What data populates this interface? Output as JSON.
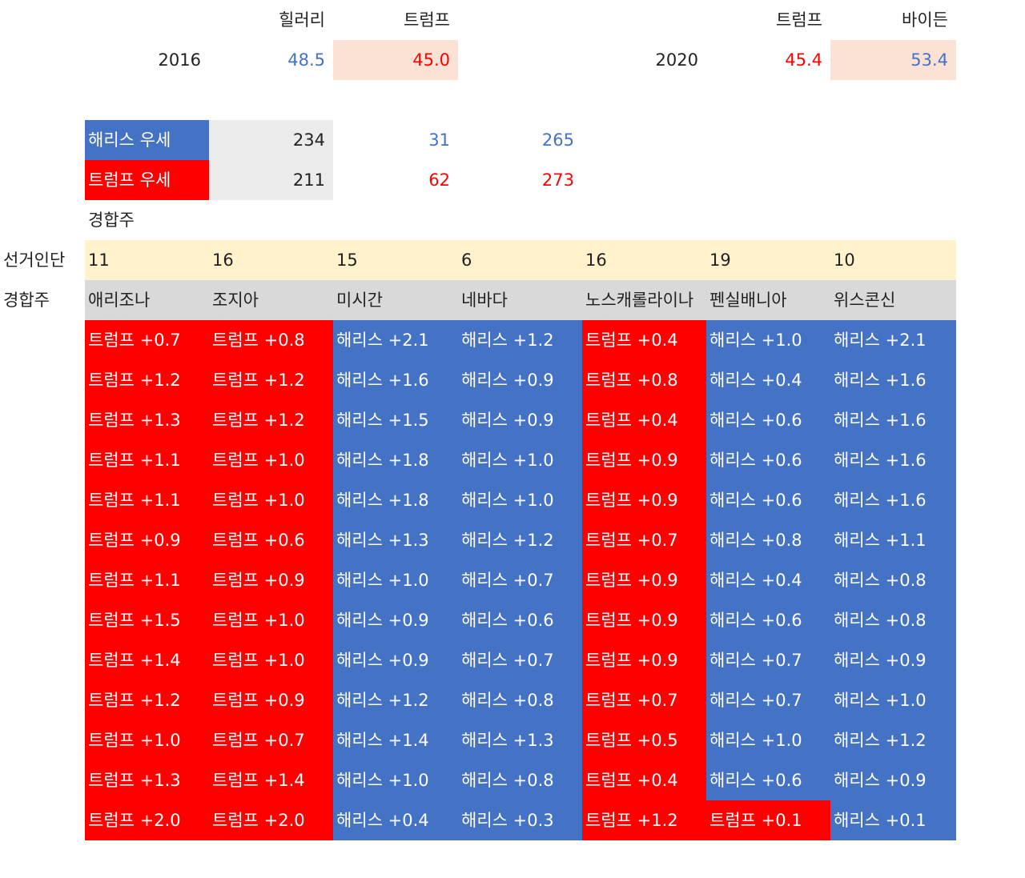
{
  "colors": {
    "harris": "#4472c4",
    "trump": "#ff0000",
    "peach": "#fbe2d5",
    "light_gray": "#ebebeb",
    "yellow": "#fff2cc",
    "gray": "#d9d9d9"
  },
  "y2016": {
    "year": "2016",
    "h1": "힐러리",
    "h2": "트럼프",
    "v1": "48.5",
    "v2": "45.0"
  },
  "y2020": {
    "year": "2020",
    "h1": "트럼프",
    "h2": "바이든",
    "v1": "45.4",
    "v2": "53.4"
  },
  "summary": {
    "harris": {
      "label": "해리스 우세",
      "base": "234",
      "add": "31",
      "total": "265"
    },
    "trump": {
      "label": "트럼프 우세",
      "base": "211",
      "add": "62",
      "total": "273"
    },
    "swing_label": "경합주"
  },
  "table": {
    "electors_label": "선거인단",
    "states_label": "경합주",
    "electors": [
      "11",
      "16",
      "15",
      "6",
      "16",
      "19",
      "10"
    ],
    "states": [
      "애리조나",
      "조지아",
      "미시간",
      "네바다",
      "노스캐롤라이나",
      "펜실배니아",
      "위스콘신"
    ],
    "rows": [
      [
        "트럼프 +0.7",
        "트럼프 +0.8",
        "해리스 +2.1",
        "해리스 +1.2",
        "트럼프 +0.4",
        "해리스 +1.0",
        "해리스 +2.1"
      ],
      [
        "트럼프 +1.2",
        "트럼프 +1.2",
        "해리스 +1.6",
        "해리스 +0.9",
        "트럼프 +0.8",
        "해리스 +0.4",
        "해리스 +1.6"
      ],
      [
        "트럼프 +1.3",
        "트럼프 +1.2",
        "해리스 +1.5",
        "해리스 +0.9",
        "트럼프 +0.4",
        "해리스 +0.6",
        "해리스 +1.6"
      ],
      [
        "트럼프 +1.1",
        "트럼프 +1.0",
        "해리스 +1.8",
        "해리스 +1.0",
        "트럼프 +0.9",
        "해리스 +0.6",
        "해리스 +1.6"
      ],
      [
        "트럼프 +1.1",
        "트럼프 +1.0",
        "해리스 +1.8",
        "해리스 +1.0",
        "트럼프 +0.9",
        "해리스 +0.6",
        "해리스 +1.6"
      ],
      [
        "트럼프 +0.9",
        "트럼프 +0.6",
        "해리스 +1.3",
        "해리스 +1.2",
        "트럼프 +0.7",
        "해리스 +0.8",
        "해리스 +1.1"
      ],
      [
        "트럼프 +1.1",
        "트럼프 +0.9",
        "해리스 +1.0",
        "해리스 +0.7",
        "트럼프 +0.9",
        "해리스 +0.4",
        "해리스 +0.8"
      ],
      [
        "트럼프 +1.5",
        "트럼프 +1.0",
        "해리스 +0.9",
        "해리스 +0.6",
        "트럼프 +0.9",
        "해리스 +0.6",
        "해리스 +0.8"
      ],
      [
        "트럼프 +1.4",
        "트럼프 +1.0",
        "해리스 +0.9",
        "해리스 +0.7",
        "트럼프 +0.9",
        "해리스 +0.7",
        "해리스 +0.9"
      ],
      [
        "트럼프 +1.2",
        "트럼프 +0.9",
        "해리스 +1.2",
        "해리스 +0.8",
        "트럼프 +0.7",
        "해리스 +0.7",
        "해리스 +1.0"
      ],
      [
        "트럼프 +1.0",
        "트럼프 +0.7",
        "해리스 +1.4",
        "해리스 +1.3",
        "트럼프 +0.5",
        "해리스 +1.0",
        "해리스 +1.2"
      ],
      [
        "트럼프 +1.3",
        "트럼프 +1.4",
        "해리스 +1.0",
        "해리스 +0.8",
        "트럼프 +0.4",
        "해리스 +0.6",
        "해리스 +0.9"
      ],
      [
        "트럼프 +2.0",
        "트럼프 +2.0",
        "해리스 +0.4",
        "해리스 +0.3",
        "트럼프 +1.2",
        "트럼프 +0.1",
        "해리스 +0.1"
      ]
    ]
  }
}
